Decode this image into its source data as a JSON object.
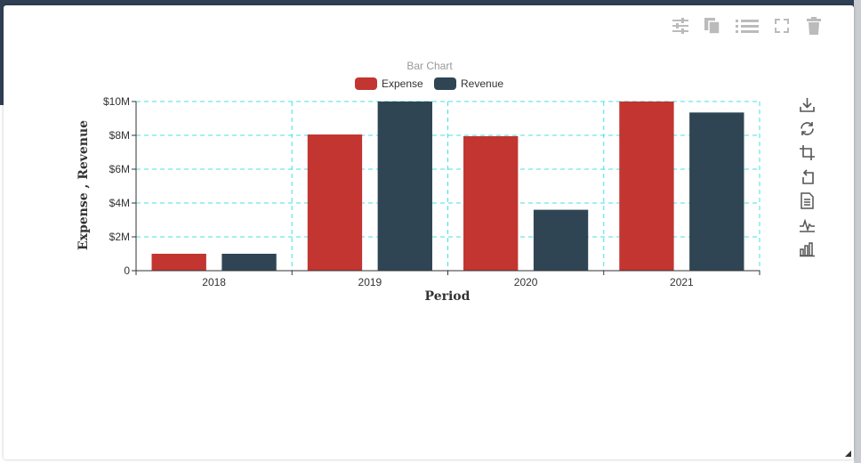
{
  "toolbar": {
    "icons": [
      "sliders-icon",
      "copy-icon",
      "list-icon",
      "expand-icon",
      "trash-icon"
    ]
  },
  "chart_tools": [
    "download-icon",
    "refresh-icon",
    "crop-icon",
    "undo-icon",
    "data-view-icon",
    "line-chart-icon",
    "bar-chart-icon"
  ],
  "colors": {
    "expense": "#c23531",
    "revenue": "#2f4554",
    "grid": "#44e3e3"
  },
  "chart_data": {
    "type": "bar",
    "title": "Bar Chart",
    "xlabel": "Period",
    "ylabel": "Expense , Revenue",
    "categories": [
      "2018",
      "2019",
      "2020",
      "2021"
    ],
    "series": [
      {
        "name": "Expense",
        "values": [
          1000000,
          8050000,
          7950000,
          10000000
        ]
      },
      {
        "name": "Revenue",
        "values": [
          1000000,
          10000000,
          3600000,
          9350000
        ]
      }
    ],
    "ylim": [
      0,
      10000000
    ],
    "yticks": [
      "0",
      "$2M",
      "$4M",
      "$6M",
      "$8M",
      "$10M"
    ],
    "legend_position": "top-center",
    "grid": true
  }
}
